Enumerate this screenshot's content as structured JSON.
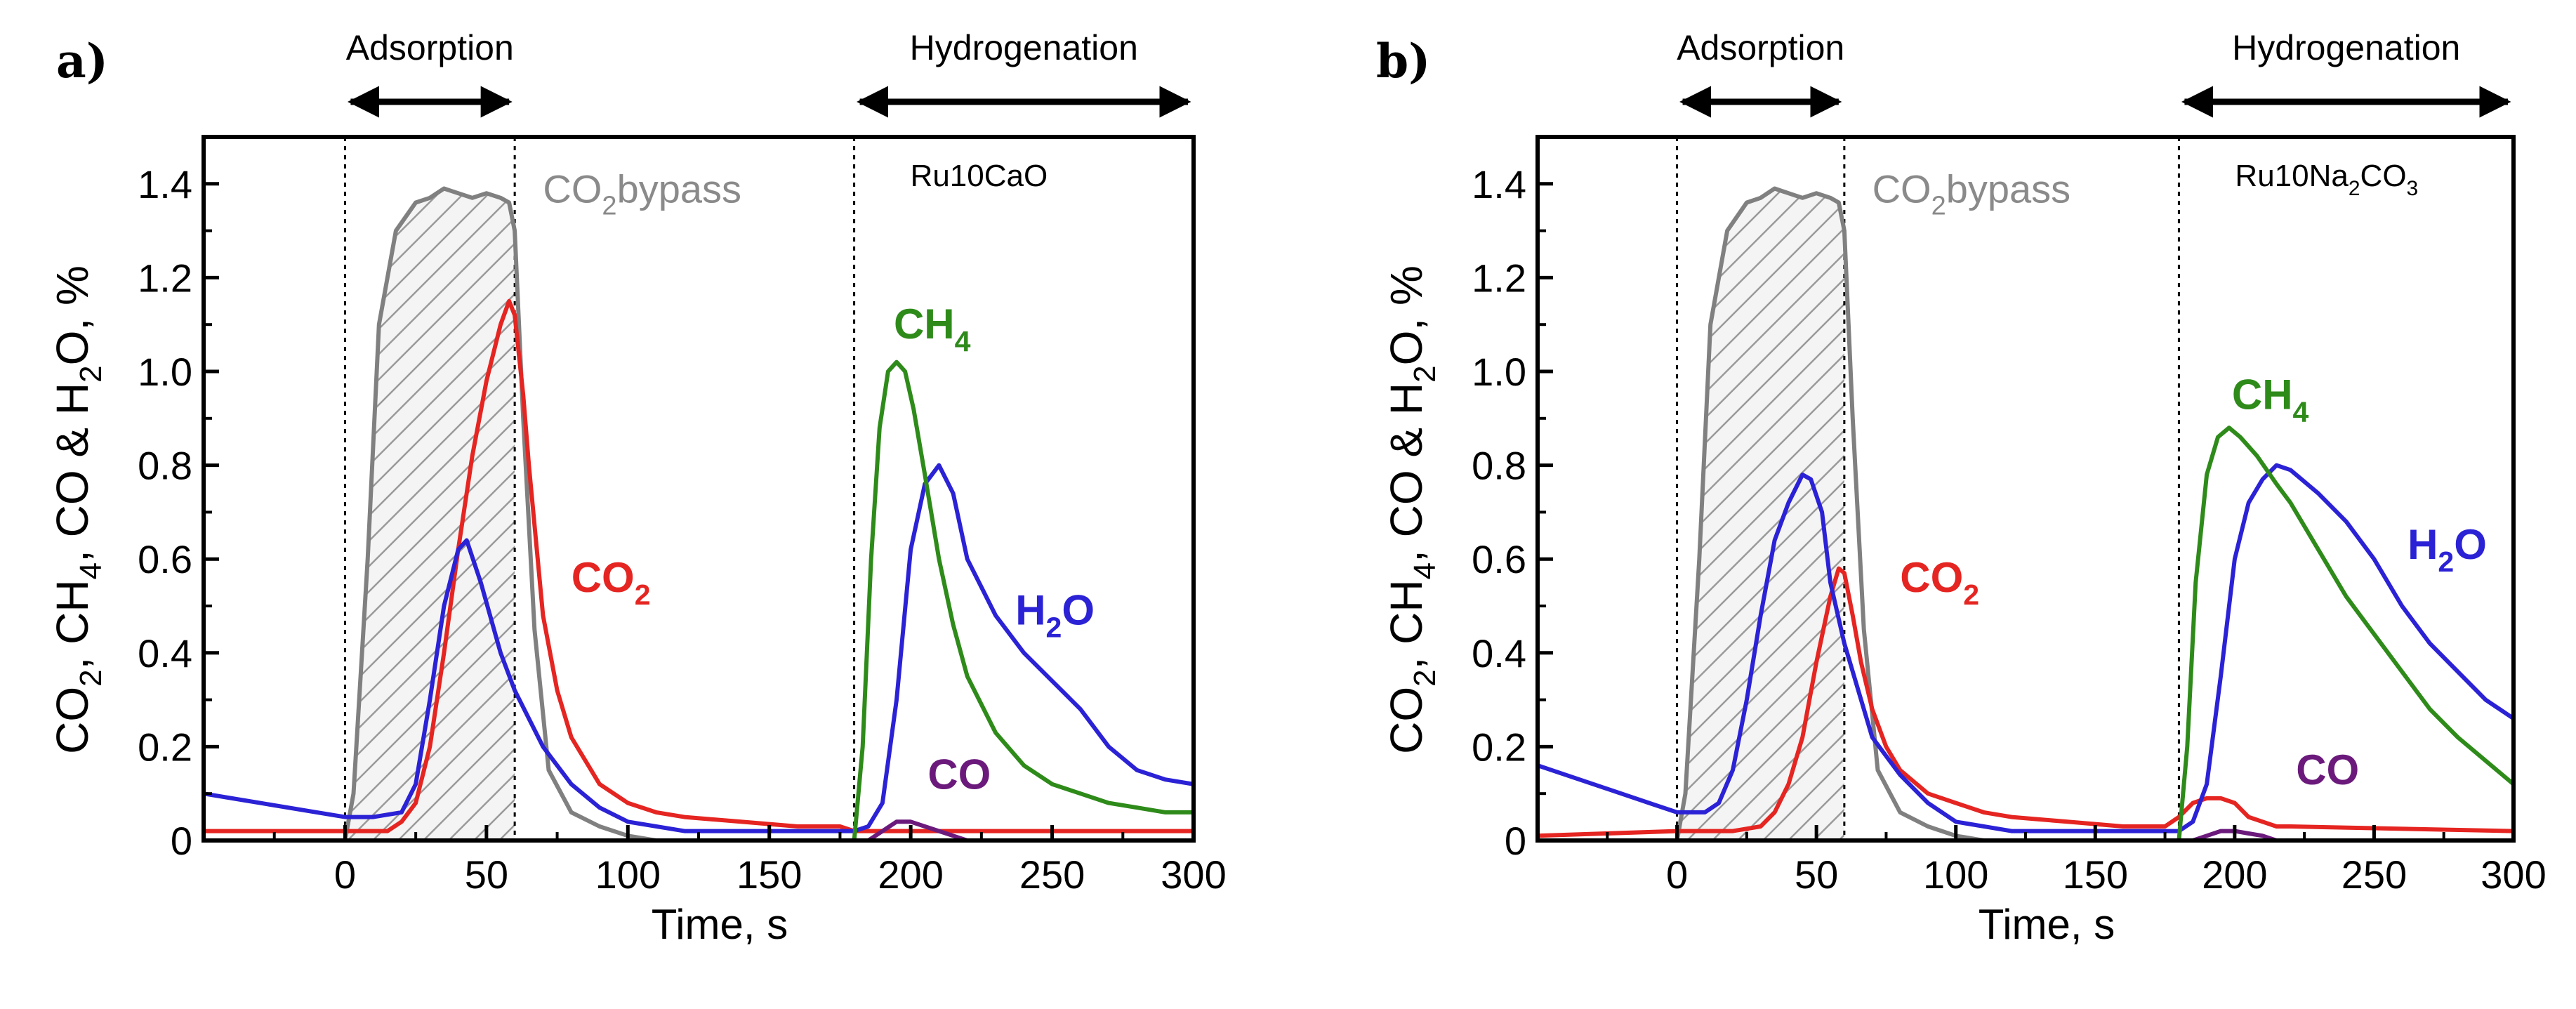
{
  "chart_data": [
    {
      "type": "line",
      "panel_label": "a)",
      "catalyst_label": "Ru10CaO",
      "catalyst_parts": [
        {
          "t": "Ru10CaO",
          "sub": false
        }
      ],
      "xlabel": "Time, s",
      "ylabel_parts": [
        {
          "t": "CO",
          "sub": false
        },
        {
          "t": "2",
          "sub": true
        },
        {
          "t": ", CH",
          "sub": false
        },
        {
          "t": "4",
          "sub": true
        },
        {
          "t": ", CO & H",
          "sub": false
        },
        {
          "t": "2",
          "sub": true
        },
        {
          "t": "O, %",
          "sub": false
        }
      ],
      "xlim": [
        -50,
        300
      ],
      "ylim": [
        0,
        1.5
      ],
      "xticks": [
        0,
        50,
        100,
        150,
        200,
        250,
        300
      ],
      "yticks": [
        0,
        0.2,
        0.4,
        0.6,
        0.8,
        1.0,
        1.2,
        1.4
      ],
      "ytick_labels": [
        "0",
        "0.2",
        "0.4",
        "0.6",
        "0.8",
        "1.0",
        "1.2",
        "1.4"
      ],
      "vlines": [
        0,
        60,
        180
      ],
      "phases": [
        {
          "label": "Adsorption",
          "x_start": 0,
          "x_end": 60
        },
        {
          "label": "Hydrogenation",
          "x_start": 180,
          "x_end": 300
        }
      ],
      "hatch_region": {
        "series": "CO2 bypass",
        "x_start": 0,
        "x_end": 60
      },
      "series": [
        {
          "name": "CO2 bypass",
          "color": "#808080",
          "label_parts": [
            {
              "t": "CO",
              "sub": false
            },
            {
              "t": "2",
              "sub": true
            },
            {
              "t": "bypass",
              "sub": false
            }
          ],
          "label_at": [
            70,
            1.36
          ],
          "label_color": "#8a8a8a",
          "label_bold": false,
          "x": [
            -50,
            0,
            3,
            8,
            12,
            18,
            25,
            30,
            35,
            40,
            45,
            50,
            55,
            58,
            60,
            63,
            67,
            72,
            80,
            90,
            100,
            110,
            120,
            300
          ],
          "y": [
            0,
            0,
            0.1,
            0.6,
            1.1,
            1.3,
            1.36,
            1.37,
            1.39,
            1.38,
            1.37,
            1.38,
            1.37,
            1.36,
            1.3,
            0.9,
            0.45,
            0.15,
            0.06,
            0.03,
            0.01,
            0,
            0,
            0
          ]
        },
        {
          "name": "CO2",
          "color": "#e52521",
          "label_parts": [
            {
              "t": "CO",
              "sub": false
            },
            {
              "t": "2",
              "sub": true
            }
          ],
          "label_at": [
            80,
            0.53
          ],
          "label_color": "#e52521",
          "label_bold": true,
          "x": [
            -50,
            0,
            15,
            20,
            25,
            30,
            35,
            40,
            45,
            50,
            55,
            58,
            60,
            63,
            65,
            70,
            75,
            80,
            90,
            100,
            110,
            120,
            140,
            160,
            175,
            180,
            185,
            190,
            300
          ],
          "y": [
            0.02,
            0.02,
            0.02,
            0.04,
            0.08,
            0.2,
            0.4,
            0.62,
            0.82,
            0.98,
            1.1,
            1.15,
            1.12,
            0.95,
            0.8,
            0.48,
            0.32,
            0.22,
            0.12,
            0.08,
            0.06,
            0.05,
            0.04,
            0.03,
            0.03,
            0.02,
            0.02,
            0.02,
            0.02
          ]
        },
        {
          "name": "H2O",
          "color": "#2b22d6",
          "label_parts": [
            {
              "t": "H",
              "sub": false
            },
            {
              "t": "2",
              "sub": true
            },
            {
              "t": "O",
              "sub": false
            }
          ],
          "label_at": [
            237,
            0.46
          ],
          "label_color": "#2b22d6",
          "label_bold": true,
          "x": [
            -50,
            -30,
            -10,
            0,
            10,
            20,
            25,
            30,
            35,
            40,
            43,
            48,
            55,
            60,
            70,
            80,
            90,
            100,
            120,
            150,
            180,
            185,
            190,
            195,
            200,
            205,
            210,
            215,
            220,
            230,
            240,
            250,
            260,
            270,
            280,
            290,
            300
          ],
          "y": [
            0.1,
            0.08,
            0.06,
            0.05,
            0.05,
            0.06,
            0.12,
            0.3,
            0.5,
            0.62,
            0.64,
            0.55,
            0.4,
            0.32,
            0.2,
            0.12,
            0.07,
            0.04,
            0.02,
            0.02,
            0.02,
            0.03,
            0.08,
            0.3,
            0.62,
            0.76,
            0.8,
            0.74,
            0.6,
            0.48,
            0.4,
            0.34,
            0.28,
            0.2,
            0.15,
            0.13,
            0.12
          ]
        },
        {
          "name": "CH4",
          "color": "#2e8b1a",
          "label_parts": [
            {
              "t": "CH",
              "sub": false
            },
            {
              "t": "4",
              "sub": true
            }
          ],
          "label_at": [
            194,
            1.07
          ],
          "label_color": "#2e8b1a",
          "label_bold": true,
          "x": [
            -50,
            180,
            183,
            186,
            189,
            192,
            195,
            198,
            201,
            205,
            210,
            215,
            220,
            230,
            240,
            250,
            260,
            270,
            280,
            290,
            300
          ],
          "y": [
            0,
            0,
            0.2,
            0.6,
            0.88,
            1.0,
            1.02,
            1.0,
            0.92,
            0.78,
            0.6,
            0.46,
            0.35,
            0.23,
            0.16,
            0.12,
            0.1,
            0.08,
            0.07,
            0.06,
            0.06
          ]
        },
        {
          "name": "CO",
          "color": "#6b1a7c",
          "label_parts": [
            {
              "t": "CO",
              "sub": false
            }
          ],
          "label_at": [
            206,
            0.11
          ],
          "label_color": "#6b1a7c",
          "label_bold": true,
          "x": [
            -50,
            185,
            190,
            195,
            200,
            205,
            210,
            215,
            220,
            300
          ],
          "y": [
            0,
            0,
            0.02,
            0.04,
            0.04,
            0.03,
            0.02,
            0.01,
            0,
            0
          ]
        }
      ]
    },
    {
      "type": "line",
      "panel_label": "b)",
      "catalyst_label": "Ru10Na2CO3",
      "catalyst_parts": [
        {
          "t": "Ru10Na",
          "sub": false
        },
        {
          "t": "2",
          "sub": true
        },
        {
          "t": "CO",
          "sub": false
        },
        {
          "t": "3",
          "sub": true
        }
      ],
      "xlabel": "Time, s",
      "ylabel_parts": [
        {
          "t": "CO",
          "sub": false
        },
        {
          "t": "2",
          "sub": true
        },
        {
          "t": ", CH",
          "sub": false
        },
        {
          "t": "4",
          "sub": true
        },
        {
          "t": ", CO & H",
          "sub": false
        },
        {
          "t": "2",
          "sub": true
        },
        {
          "t": "O, %",
          "sub": false
        }
      ],
      "xlim": [
        -50,
        300
      ],
      "ylim": [
        0,
        1.5
      ],
      "xticks": [
        0,
        50,
        100,
        150,
        200,
        250,
        300
      ],
      "yticks": [
        0,
        0.2,
        0.4,
        0.6,
        0.8,
        1.0,
        1.2,
        1.4
      ],
      "ytick_labels": [
        "0",
        "0.2",
        "0.4",
        "0.6",
        "0.8",
        "1.0",
        "1.2",
        "1.4"
      ],
      "vlines": [
        0,
        60,
        180
      ],
      "phases": [
        {
          "label": "Adsorption",
          "x_start": 0,
          "x_end": 60
        },
        {
          "label": "Hydrogenation",
          "x_start": 180,
          "x_end": 300
        }
      ],
      "hatch_region": {
        "series": "CO2 bypass",
        "x_start": 0,
        "x_end": 60
      },
      "series": [
        {
          "name": "CO2 bypass",
          "color": "#808080",
          "label_parts": [
            {
              "t": "CO",
              "sub": false
            },
            {
              "t": "2",
              "sub": true
            },
            {
              "t": "bypass",
              "sub": false
            }
          ],
          "label_at": [
            70,
            1.36
          ],
          "label_color": "#8a8a8a",
          "label_bold": false,
          "x": [
            -50,
            0,
            3,
            8,
            12,
            18,
            25,
            30,
            35,
            40,
            45,
            50,
            55,
            58,
            60,
            63,
            67,
            72,
            80,
            90,
            100,
            110,
            120,
            300
          ],
          "y": [
            0,
            0,
            0.1,
            0.6,
            1.1,
            1.3,
            1.36,
            1.37,
            1.39,
            1.38,
            1.37,
            1.38,
            1.37,
            1.36,
            1.3,
            0.9,
            0.45,
            0.15,
            0.06,
            0.03,
            0.01,
            0,
            0,
            0
          ]
        },
        {
          "name": "CO2",
          "color": "#e52521",
          "label_parts": [
            {
              "t": "CO",
              "sub": false
            },
            {
              "t": "2",
              "sub": true
            }
          ],
          "label_at": [
            80,
            0.53
          ],
          "label_color": "#e52521",
          "label_bold": true,
          "x": [
            -50,
            0,
            20,
            30,
            35,
            40,
            45,
            50,
            55,
            58,
            60,
            63,
            66,
            70,
            75,
            80,
            90,
            100,
            110,
            120,
            140,
            160,
            175,
            180,
            185,
            190,
            195,
            200,
            205,
            210,
            215,
            220,
            300
          ],
          "y": [
            0.01,
            0.02,
            0.02,
            0.03,
            0.06,
            0.12,
            0.22,
            0.38,
            0.52,
            0.58,
            0.57,
            0.48,
            0.38,
            0.28,
            0.2,
            0.15,
            0.1,
            0.08,
            0.06,
            0.05,
            0.04,
            0.03,
            0.03,
            0.05,
            0.08,
            0.09,
            0.09,
            0.08,
            0.05,
            0.04,
            0.03,
            0.03,
            0.02
          ]
        },
        {
          "name": "H2O",
          "color": "#2b22d6",
          "label_parts": [
            {
              "t": "H",
              "sub": false
            },
            {
              "t": "2",
              "sub": true
            },
            {
              "t": "O",
              "sub": false
            }
          ],
          "label_at": [
            262,
            0.6
          ],
          "label_color": "#2b22d6",
          "label_bold": true,
          "x": [
            -50,
            -30,
            -10,
            0,
            10,
            15,
            20,
            25,
            30,
            35,
            40,
            45,
            48,
            52,
            55,
            60,
            70,
            80,
            90,
            100,
            120,
            150,
            180,
            185,
            190,
            195,
            200,
            205,
            210,
            215,
            220,
            230,
            240,
            250,
            260,
            270,
            280,
            290,
            300
          ],
          "y": [
            0.16,
            0.12,
            0.08,
            0.06,
            0.06,
            0.08,
            0.15,
            0.3,
            0.48,
            0.64,
            0.72,
            0.78,
            0.77,
            0.7,
            0.55,
            0.42,
            0.22,
            0.14,
            0.08,
            0.04,
            0.02,
            0.02,
            0.02,
            0.04,
            0.12,
            0.35,
            0.6,
            0.72,
            0.77,
            0.8,
            0.79,
            0.74,
            0.68,
            0.6,
            0.5,
            0.42,
            0.36,
            0.3,
            0.26
          ]
        },
        {
          "name": "CH4",
          "color": "#2e8b1a",
          "label_parts": [
            {
              "t": "CH",
              "sub": false
            },
            {
              "t": "4",
              "sub": true
            }
          ],
          "label_at": [
            199,
            0.92
          ],
          "label_color": "#2e8b1a",
          "label_bold": true,
          "x": [
            -50,
            180,
            183,
            186,
            190,
            194,
            198,
            202,
            208,
            215,
            220,
            230,
            240,
            250,
            260,
            270,
            280,
            290,
            300
          ],
          "y": [
            0,
            0,
            0.2,
            0.55,
            0.78,
            0.86,
            0.88,
            0.86,
            0.82,
            0.76,
            0.72,
            0.62,
            0.52,
            0.44,
            0.36,
            0.28,
            0.22,
            0.17,
            0.12
          ]
        },
        {
          "name": "CO",
          "color": "#6b1a7c",
          "label_parts": [
            {
              "t": "CO",
              "sub": false
            }
          ],
          "label_at": [
            222,
            0.12
          ],
          "label_color": "#6b1a7c",
          "label_bold": true,
          "x": [
            -50,
            185,
            190,
            195,
            200,
            205,
            210,
            215,
            300
          ],
          "y": [
            0,
            0,
            0.01,
            0.02,
            0.02,
            0.015,
            0.01,
            0,
            0
          ]
        }
      ]
    }
  ]
}
